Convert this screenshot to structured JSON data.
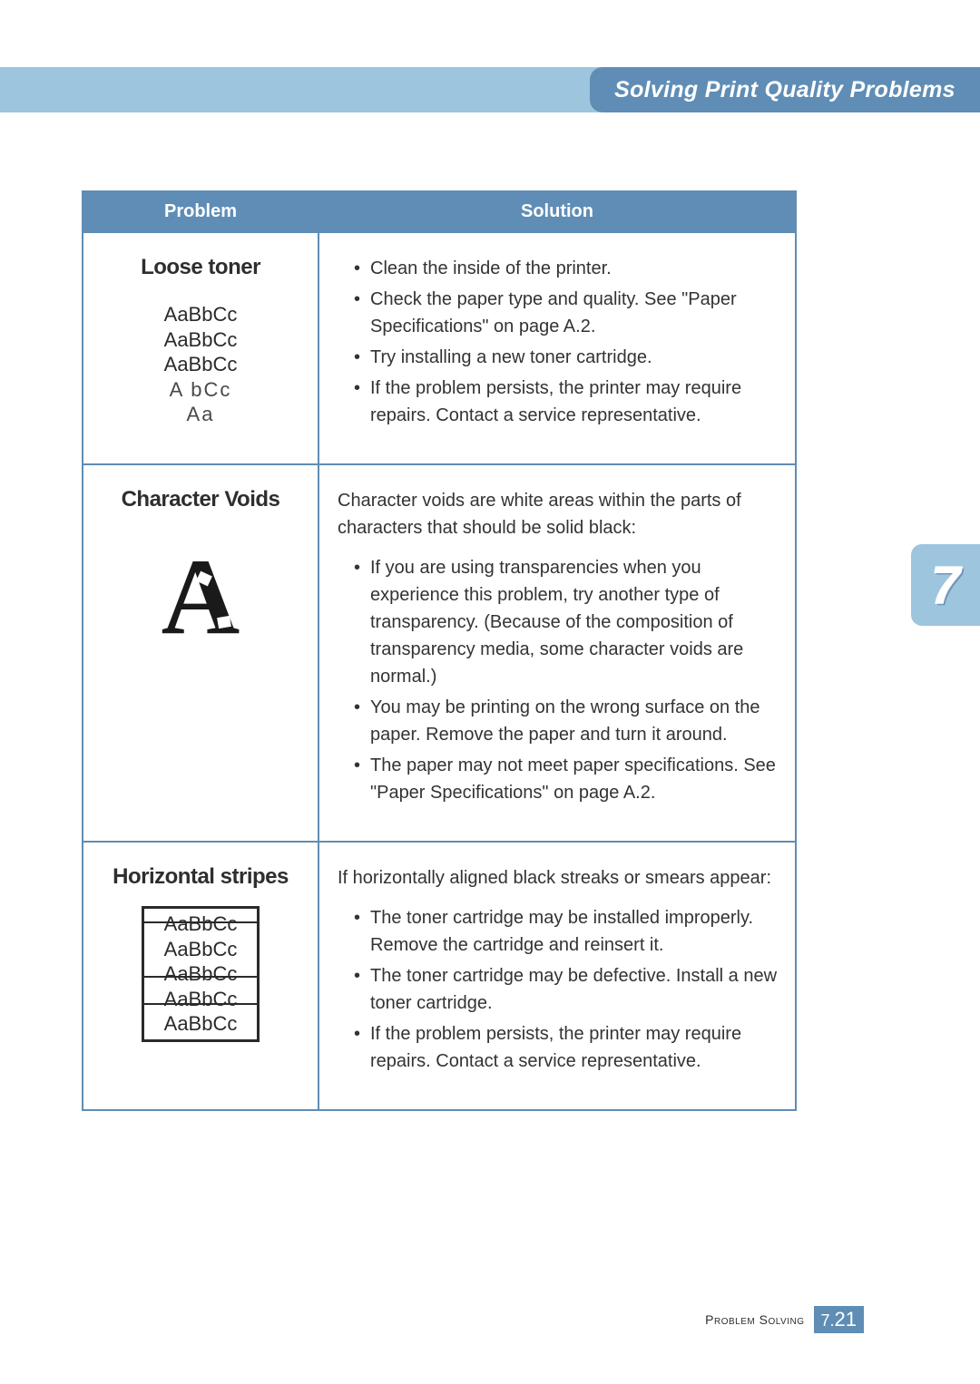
{
  "header": {
    "section_title": "Solving Print Quality Problems"
  },
  "side_tab": {
    "chapter": "7"
  },
  "table": {
    "col_problem": "Problem",
    "col_solution": "Solution",
    "rows": [
      {
        "problem_name": "Loose toner",
        "sample_lines": [
          "AaBbCc",
          "AaBbCc",
          "AaBbCc",
          "A   bCc",
          "Aa"
        ],
        "solution_intro": "",
        "bullets": [
          "Clean the inside of the printer.",
          "Check the paper type and quality. See \"Paper Specifications\" on page A.2.",
          "Try installing a new toner cartridge.",
          "If the problem persists, the printer may require repairs. Contact a service representative."
        ]
      },
      {
        "problem_name": "Character Voids",
        "big_letter": "A",
        "solution_intro": "Character voids are white areas within the parts of characters that should be solid black:",
        "bullets": [
          "If you are using transparencies when you experience this problem, try another type of transparency. (Because of the composition of transparency media, some character voids are normal.)",
          "You may be printing on the wrong surface on the paper. Remove the paper and turn it around.",
          "The paper may not meet paper specifications. See \"Paper Specifications\" on page A.2."
        ]
      },
      {
        "problem_name": "Horizontal stripes",
        "sample_lines": [
          "AaBbCc",
          "AaBbCc",
          "AaBbCc",
          "AaBbCc",
          "AaBbCc"
        ],
        "solution_intro": "If horizontally aligned black streaks or smears appear:",
        "bullets": [
          "The toner cartridge may be installed improperly. Remove the cartridge and reinsert it.",
          "The toner cartridge may be defective. Install a new toner cartridge.",
          "If the problem persists, the printer may require repairs. Contact a service representative."
        ]
      }
    ]
  },
  "footer": {
    "label": "Problem Solving",
    "page_prefix": "7.",
    "page_num": "21"
  },
  "colors": {
    "header_bg": "#5f8db5",
    "light_stripe": "#9dc5dd",
    "text": "#333333",
    "white": "#ffffff"
  }
}
